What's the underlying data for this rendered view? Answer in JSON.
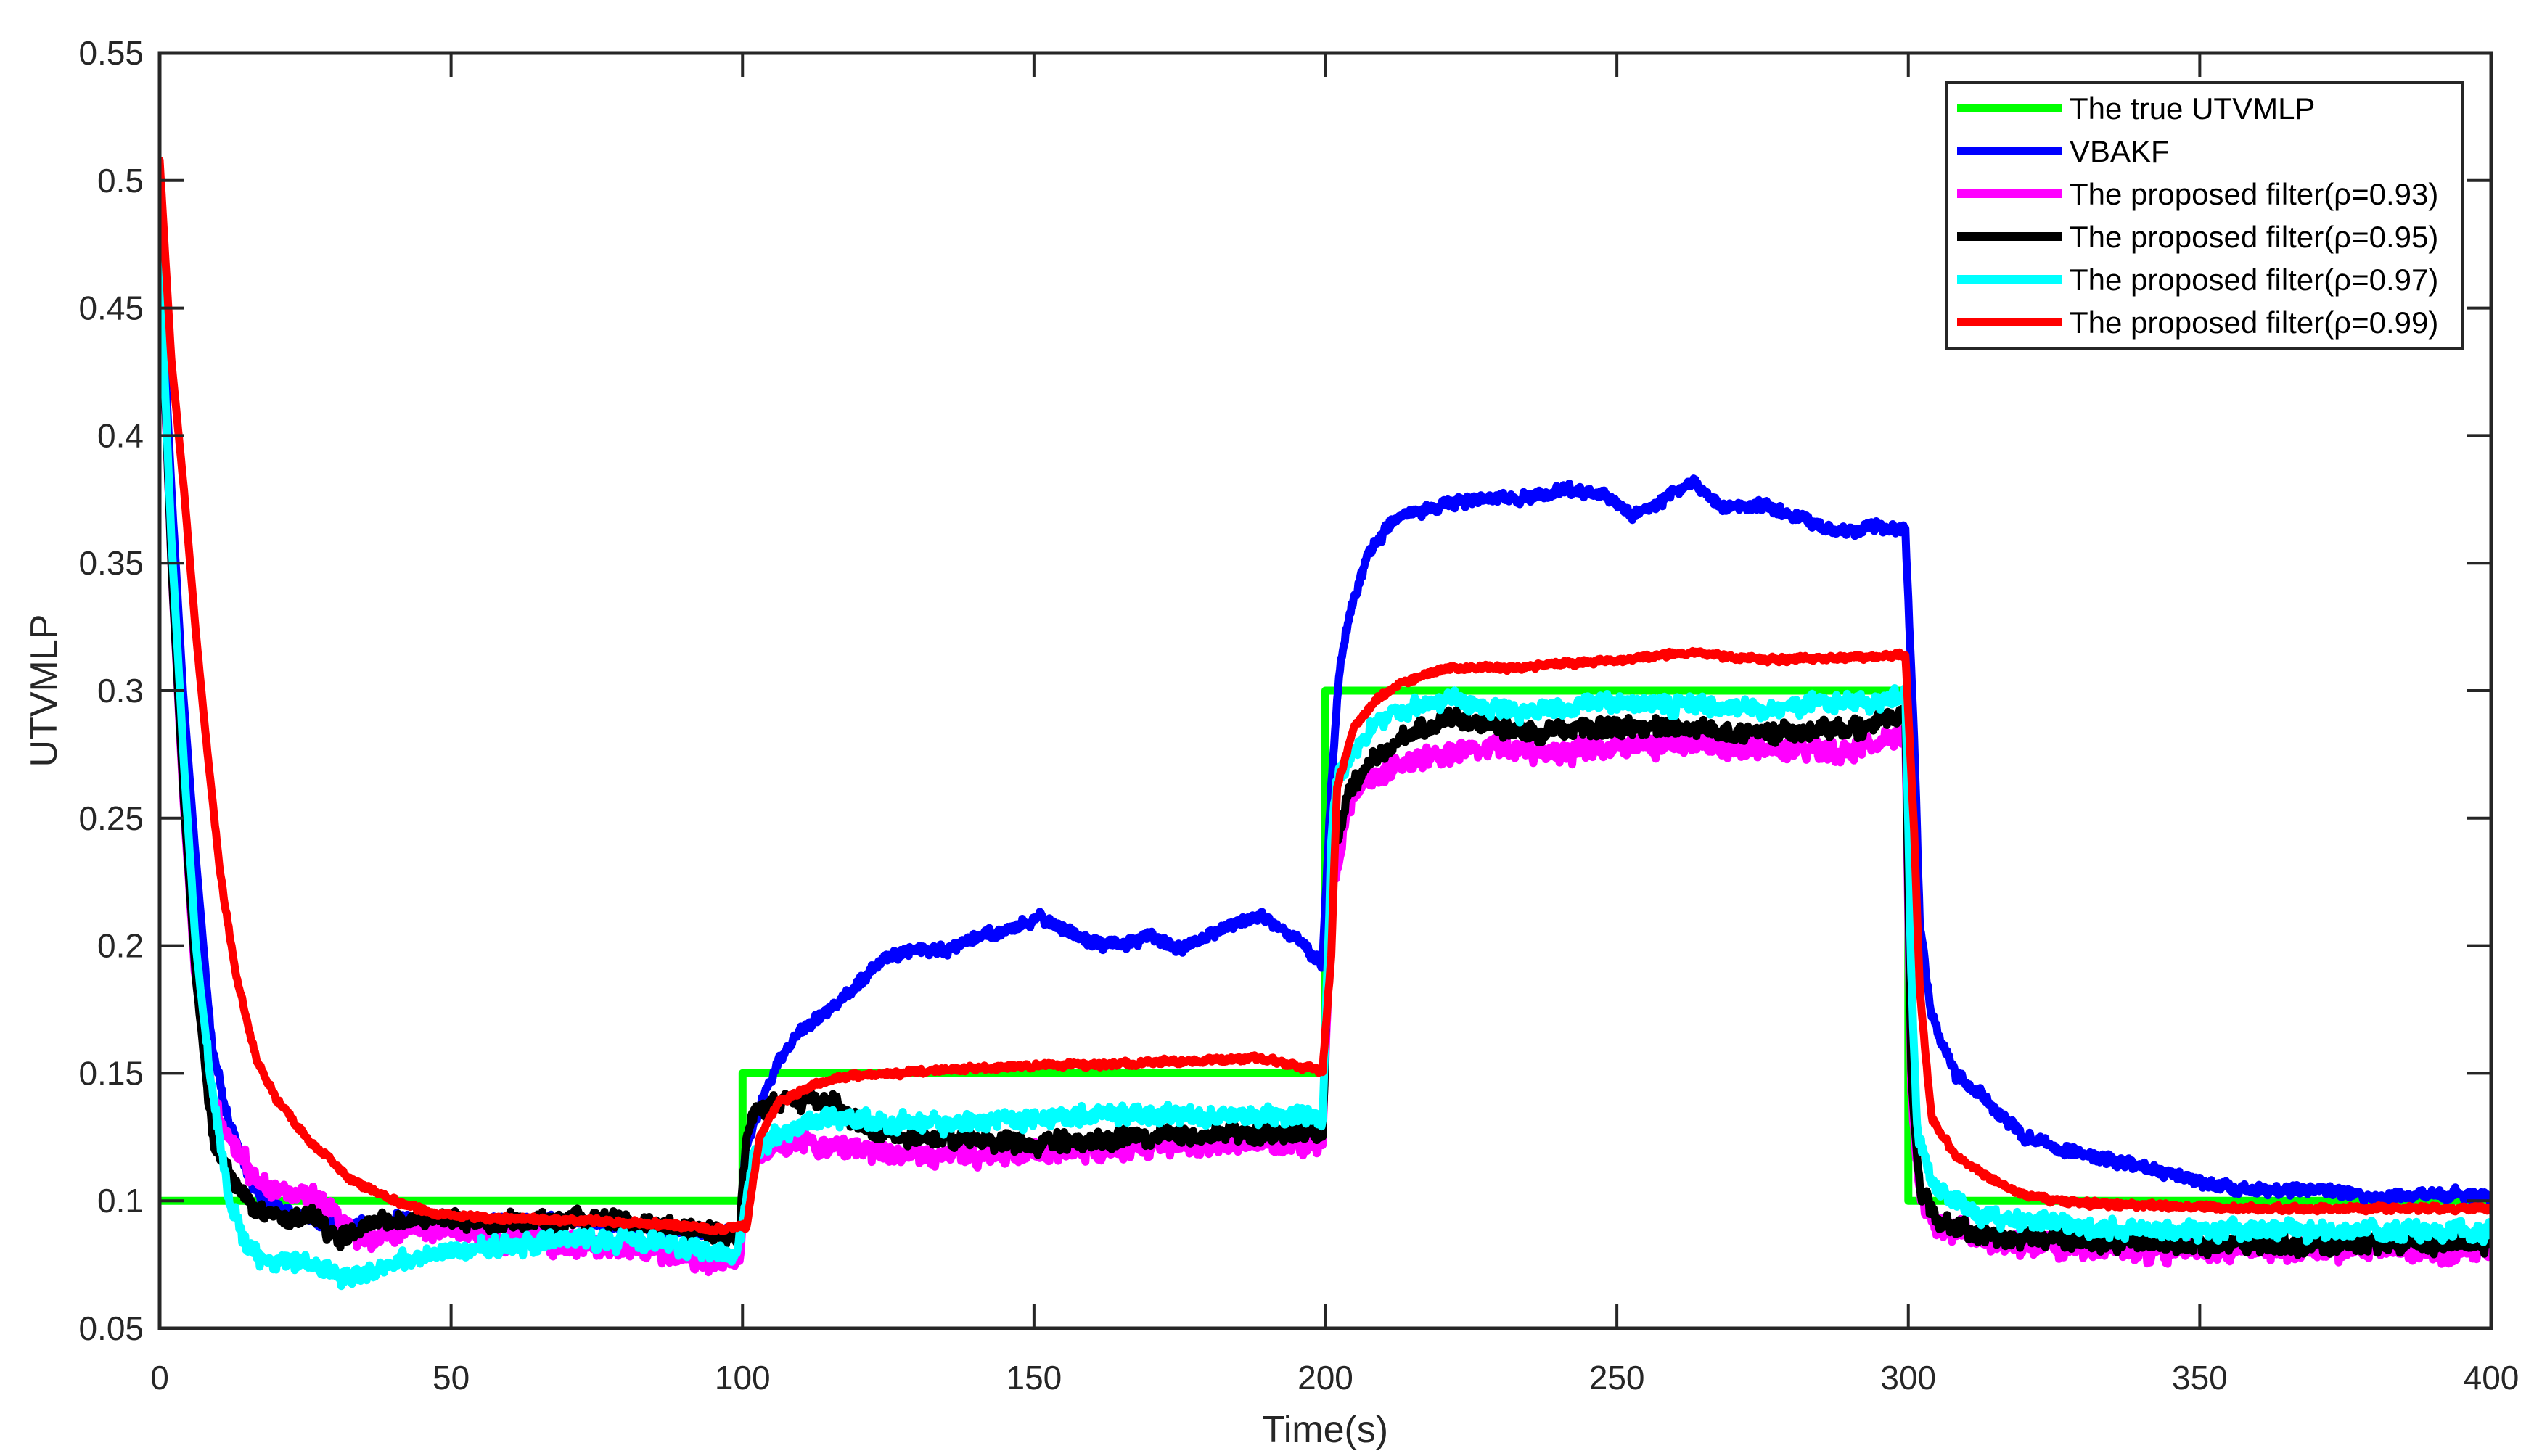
{
  "chart_data": {
    "type": "line",
    "title": "",
    "xlabel": "Time(s)",
    "ylabel": "UTVMLP",
    "xlim": [
      0,
      400
    ],
    "ylim": [
      0.05,
      0.55
    ],
    "grid": false,
    "legend_position": "upper right (inside)",
    "x_ticks": [
      0,
      50,
      100,
      150,
      200,
      250,
      300,
      350,
      400
    ],
    "x_tick_labels": [
      "0",
      "50",
      "100",
      "150",
      "200",
      "250",
      "300",
      "350",
      "400"
    ],
    "y_ticks": [
      0.05,
      0.1,
      0.15,
      0.2,
      0.25,
      0.3,
      0.35,
      0.4,
      0.45,
      0.5,
      0.55
    ],
    "y_tick_labels": [
      "0.05",
      "0.1",
      "0.15",
      "0.2",
      "0.25",
      "0.3",
      "0.35",
      "0.4",
      "0.45",
      "0.5",
      "0.55"
    ],
    "series": [
      {
        "name": "The true UTVMLP",
        "color": "#00ff00",
        "noise": 0,
        "step": true,
        "points": [
          [
            0,
            0.1
          ],
          [
            100,
            0.1
          ],
          [
            100,
            0.15
          ],
          [
            200,
            0.15
          ],
          [
            200,
            0.3
          ],
          [
            300,
            0.3
          ],
          [
            300,
            0.1
          ],
          [
            400,
            0.1
          ]
        ]
      },
      {
        "name": "VBAKF",
        "color": "#0000ff",
        "noise": 0.003,
        "step": false,
        "points": [
          [
            0,
            0.47
          ],
          [
            2,
            0.38
          ],
          [
            4,
            0.3
          ],
          [
            6,
            0.24
          ],
          [
            9,
            0.16
          ],
          [
            12,
            0.13
          ],
          [
            16,
            0.105
          ],
          [
            20,
            0.097
          ],
          [
            30,
            0.09
          ],
          [
            40,
            0.093
          ],
          [
            50,
            0.092
          ],
          [
            70,
            0.092
          ],
          [
            90,
            0.088
          ],
          [
            99.5,
            0.087
          ],
          [
            100.5,
            0.12
          ],
          [
            103,
            0.137
          ],
          [
            106,
            0.154
          ],
          [
            110,
            0.167
          ],
          [
            115,
            0.175
          ],
          [
            120,
            0.185
          ],
          [
            125,
            0.196
          ],
          [
            130,
            0.199
          ],
          [
            135,
            0.198
          ],
          [
            140,
            0.204
          ],
          [
            145,
            0.205
          ],
          [
            151,
            0.211
          ],
          [
            155,
            0.207
          ],
          [
            160,
            0.201
          ],
          [
            165,
            0.2
          ],
          [
            170,
            0.204
          ],
          [
            175,
            0.199
          ],
          [
            180,
            0.204
          ],
          [
            188,
            0.212
          ],
          [
            193,
            0.207
          ],
          [
            199.5,
            0.193
          ],
          [
            201,
            0.263
          ],
          [
            202.5,
            0.31
          ],
          [
            204,
            0.329
          ],
          [
            207,
            0.352
          ],
          [
            212,
            0.368
          ],
          [
            220,
            0.373
          ],
          [
            228,
            0.375
          ],
          [
            235,
            0.376
          ],
          [
            242,
            0.379
          ],
          [
            248,
            0.377
          ],
          [
            252,
            0.369
          ],
          [
            256,
            0.372
          ],
          [
            263,
            0.382
          ],
          [
            268,
            0.372
          ],
          [
            275,
            0.373
          ],
          [
            282,
            0.367
          ],
          [
            288,
            0.362
          ],
          [
            294,
            0.364
          ],
          [
            299.5,
            0.363
          ],
          [
            301,
            0.281
          ],
          [
            302,
            0.208
          ],
          [
            304,
            0.172
          ],
          [
            308,
            0.15
          ],
          [
            314,
            0.138
          ],
          [
            320,
            0.125
          ],
          [
            330,
            0.118
          ],
          [
            340,
            0.113
          ],
          [
            353,
            0.106
          ],
          [
            362,
            0.104
          ],
          [
            372,
            0.104
          ],
          [
            380,
            0.101
          ],
          [
            390,
            0.103
          ],
          [
            400,
            0.101
          ]
        ]
      },
      {
        "name": "The proposed filter(ρ=0.93)",
        "color": "#ff00ff",
        "noise": 0.006,
        "step": false,
        "points": [
          [
            0,
            0.47
          ],
          [
            2,
            0.35
          ],
          [
            4,
            0.26
          ],
          [
            6,
            0.19
          ],
          [
            9,
            0.14
          ],
          [
            12,
            0.125
          ],
          [
            16,
            0.11
          ],
          [
            20,
            0.104
          ],
          [
            27,
            0.1
          ],
          [
            34,
            0.085
          ],
          [
            45,
            0.09
          ],
          [
            60,
            0.085
          ],
          [
            67.5,
            0.083
          ],
          [
            80,
            0.082
          ],
          [
            94.5,
            0.076
          ],
          [
            99.5,
            0.076
          ],
          [
            100.5,
            0.105
          ],
          [
            102,
            0.118
          ],
          [
            106,
            0.123
          ],
          [
            114,
            0.122
          ],
          [
            130,
            0.118
          ],
          [
            150,
            0.119
          ],
          [
            170,
            0.121
          ],
          [
            190,
            0.123
          ],
          [
            199.5,
            0.122
          ],
          [
            201,
            0.22
          ],
          [
            204,
            0.255
          ],
          [
            207,
            0.266
          ],
          [
            215,
            0.272
          ],
          [
            225,
            0.278
          ],
          [
            240,
            0.276
          ],
          [
            260,
            0.28
          ],
          [
            275,
            0.276
          ],
          [
            290,
            0.276
          ],
          [
            299.5,
            0.283
          ],
          [
            300.5,
            0.14
          ],
          [
            302,
            0.1
          ],
          [
            305,
            0.09
          ],
          [
            315,
            0.083
          ],
          [
            340,
            0.081
          ],
          [
            370,
            0.081
          ],
          [
            400,
            0.08
          ]
        ]
      },
      {
        "name": "The proposed filter(ρ=0.95)",
        "color": "#000000",
        "noise": 0.005,
        "step": false,
        "points": [
          [
            0,
            0.47
          ],
          [
            1.2,
            0.4
          ],
          [
            2,
            0.35
          ],
          [
            4.2,
            0.255
          ],
          [
            6.2,
            0.187
          ],
          [
            9.1,
            0.125
          ],
          [
            12,
            0.11
          ],
          [
            16,
            0.097
          ],
          [
            20,
            0.093
          ],
          [
            26,
            0.094
          ],
          [
            31,
            0.085
          ],
          [
            38,
            0.092
          ],
          [
            47,
            0.093
          ],
          [
            60,
            0.091
          ],
          [
            74,
            0.093
          ],
          [
            90,
            0.089
          ],
          [
            98,
            0.087
          ],
          [
            99.5,
            0.088
          ],
          [
            100.5,
            0.12
          ],
          [
            102,
            0.136
          ],
          [
            106,
            0.138
          ],
          [
            114,
            0.14
          ],
          [
            122,
            0.127
          ],
          [
            135,
            0.124
          ],
          [
            150,
            0.122
          ],
          [
            170,
            0.125
          ],
          [
            190,
            0.127
          ],
          [
            199.5,
            0.126
          ],
          [
            201,
            0.23
          ],
          [
            204,
            0.26
          ],
          [
            207,
            0.27
          ],
          [
            215,
            0.284
          ],
          [
            221,
            0.289
          ],
          [
            235,
            0.284
          ],
          [
            255,
            0.286
          ],
          [
            275,
            0.283
          ],
          [
            290,
            0.285
          ],
          [
            299.5,
            0.291
          ],
          [
            300.5,
            0.15
          ],
          [
            302,
            0.105
          ],
          [
            305,
            0.092
          ],
          [
            315,
            0.086
          ],
          [
            340,
            0.083
          ],
          [
            370,
            0.083
          ],
          [
            400,
            0.083
          ]
        ]
      },
      {
        "name": "The proposed filter(ρ=0.97)",
        "color": "#00ffff",
        "noise": 0.005,
        "step": false,
        "points": [
          [
            0,
            0.47
          ],
          [
            2,
            0.36
          ],
          [
            4.2,
            0.27
          ],
          [
            6.2,
            0.2
          ],
          [
            9.1,
            0.14
          ],
          [
            12,
            0.1
          ],
          [
            15,
            0.082
          ],
          [
            18,
            0.077
          ],
          [
            25,
            0.076
          ],
          [
            32,
            0.07
          ],
          [
            40,
            0.075
          ],
          [
            50,
            0.08
          ],
          [
            61,
            0.083
          ],
          [
            74,
            0.085
          ],
          [
            85,
            0.084
          ],
          [
            99,
            0.078
          ],
          [
            100.5,
            0.1
          ],
          [
            102,
            0.118
          ],
          [
            106,
            0.126
          ],
          [
            114,
            0.133
          ],
          [
            125,
            0.13
          ],
          [
            140,
            0.131
          ],
          [
            160,
            0.134
          ],
          [
            180,
            0.133
          ],
          [
            199.5,
            0.133
          ],
          [
            201,
            0.24
          ],
          [
            202,
            0.267
          ],
          [
            209,
            0.288
          ],
          [
            221,
            0.298
          ],
          [
            233,
            0.291
          ],
          [
            250,
            0.296
          ],
          [
            270,
            0.293
          ],
          [
            290,
            0.295
          ],
          [
            299.5,
            0.298
          ],
          [
            300.5,
            0.19
          ],
          [
            301.5,
            0.127
          ],
          [
            304,
            0.107
          ],
          [
            312,
            0.095
          ],
          [
            330,
            0.089
          ],
          [
            360,
            0.088
          ],
          [
            400,
            0.088
          ]
        ]
      },
      {
        "name": "The proposed filter(ρ=0.99)",
        "color": "#ff0000",
        "noise": 0.0015,
        "step": false,
        "points": [
          [
            0,
            0.508
          ],
          [
            2,
            0.43
          ],
          [
            4.2,
            0.378
          ],
          [
            6.2,
            0.323
          ],
          [
            8,
            0.28
          ],
          [
            10.4,
            0.228
          ],
          [
            13,
            0.19
          ],
          [
            16.6,
            0.155
          ],
          [
            20,
            0.14
          ],
          [
            25,
            0.125
          ],
          [
            33,
            0.108
          ],
          [
            41.5,
            0.099
          ],
          [
            47,
            0.095
          ],
          [
            60,
            0.093
          ],
          [
            75,
            0.092
          ],
          [
            85,
            0.091
          ],
          [
            94.5,
            0.089
          ],
          [
            99.5,
            0.09
          ],
          [
            100.7,
            0.09
          ],
          [
            102,
            0.111
          ],
          [
            103,
            0.125
          ],
          [
            106,
            0.138
          ],
          [
            110,
            0.143
          ],
          [
            114,
            0.147
          ],
          [
            118,
            0.149
          ],
          [
            134,
            0.151
          ],
          [
            150,
            0.153
          ],
          [
            170,
            0.154
          ],
          [
            188,
            0.156
          ],
          [
            199.5,
            0.151
          ],
          [
            201,
            0.196
          ],
          [
            202,
            0.263
          ],
          [
            205,
            0.286
          ],
          [
            209,
            0.297
          ],
          [
            213,
            0.303
          ],
          [
            221,
            0.309
          ],
          [
            233,
            0.309
          ],
          [
            250,
            0.312
          ],
          [
            263,
            0.315
          ],
          [
            275,
            0.312
          ],
          [
            290,
            0.313
          ],
          [
            299.5,
            0.314
          ],
          [
            301,
            0.245
          ],
          [
            302,
            0.181
          ],
          [
            304,
            0.132
          ],
          [
            308,
            0.118
          ],
          [
            314,
            0.109
          ],
          [
            320,
            0.102
          ],
          [
            330,
            0.099
          ],
          [
            345,
            0.098
          ],
          [
            360,
            0.097
          ],
          [
            380,
            0.097
          ],
          [
            400,
            0.097
          ]
        ]
      }
    ]
  },
  "legend": {
    "items": [
      {
        "label": "The true UTVMLP",
        "color": "#00ff00"
      },
      {
        "label": "VBAKF",
        "color": "#0000ff"
      },
      {
        "label": "The proposed filter(ρ=0.93)",
        "color": "#ff00ff"
      },
      {
        "label": "The proposed filter(ρ=0.95)",
        "color": "#000000"
      },
      {
        "label": "The proposed filter(ρ=0.97)",
        "color": "#00ffff"
      },
      {
        "label": "The proposed filter(ρ=0.99)",
        "color": "#ff0000"
      }
    ]
  },
  "axes": {
    "xlabel": "Time(s)",
    "ylabel": "UTVMLP"
  }
}
